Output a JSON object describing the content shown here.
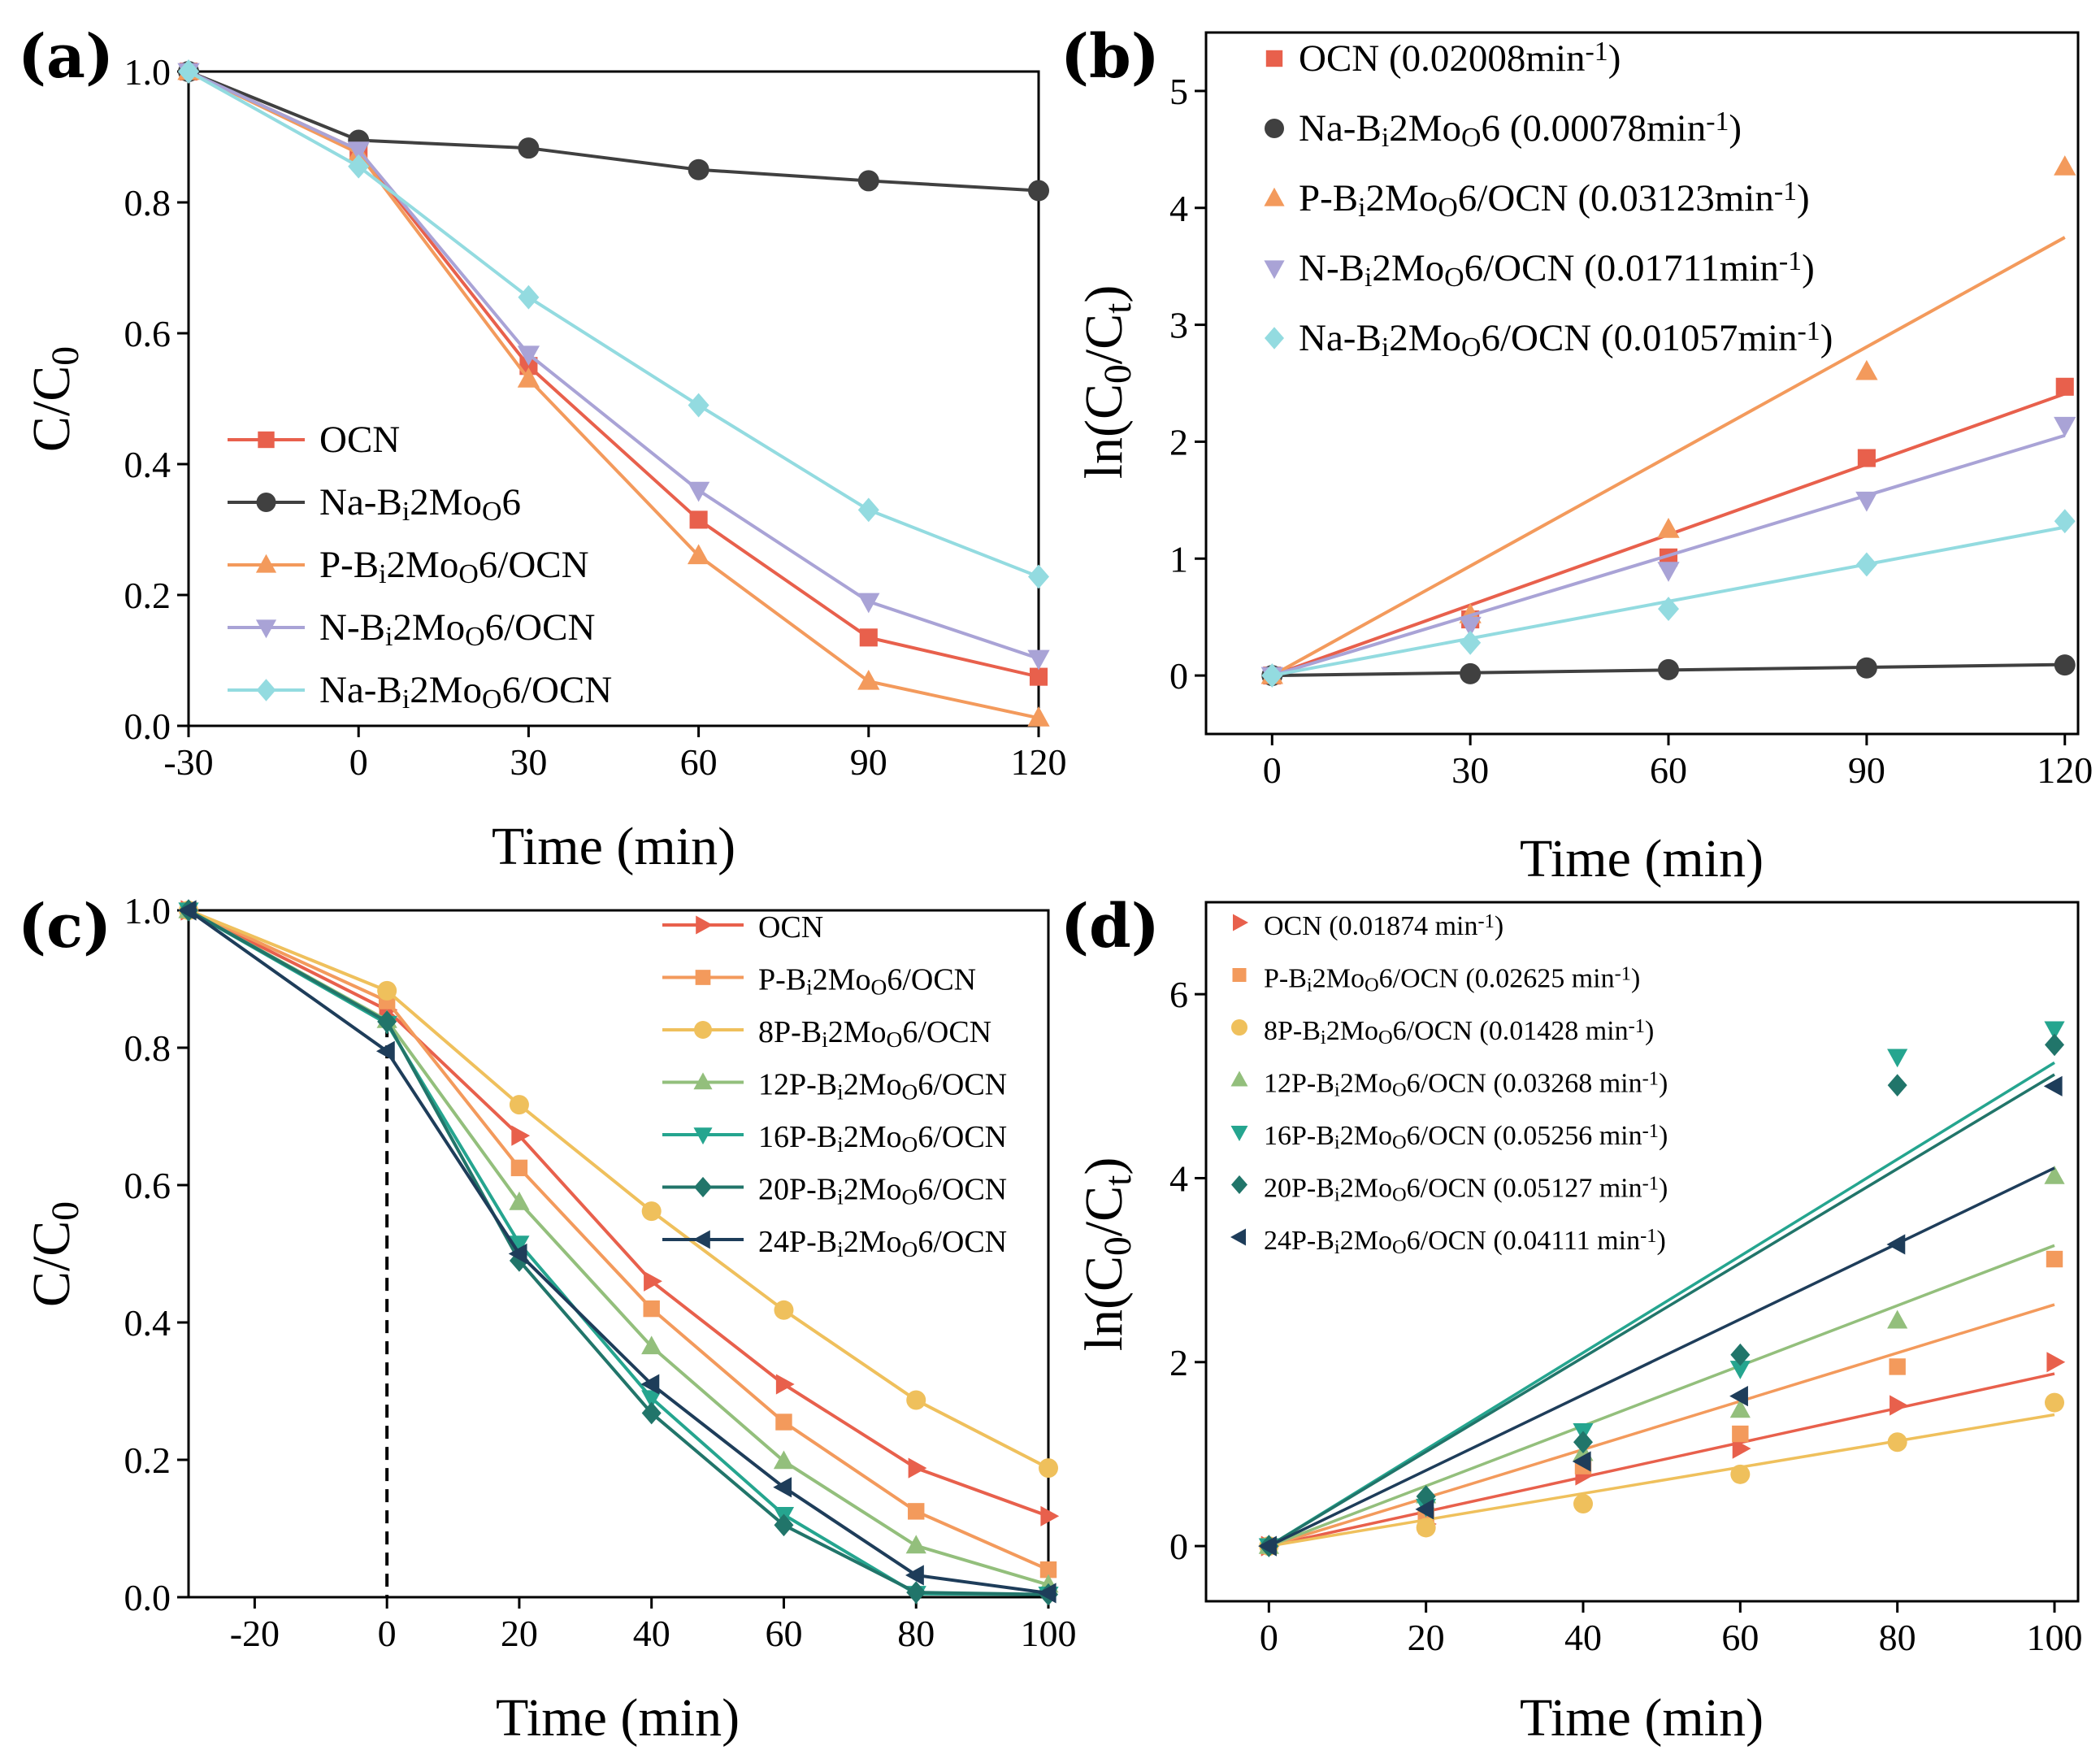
{
  "chart_data": [
    {
      "panel": "(a)",
      "type": "line",
      "xlabel": "Time (min)",
      "ylabel": "C/C0",
      "xlim": [
        -30,
        120
      ],
      "ylim": [
        0.0,
        1.0
      ],
      "xticks": [
        -30,
        0,
        30,
        60,
        90,
        120
      ],
      "yticks": [
        0.0,
        0.2,
        0.4,
        0.6,
        0.8,
        1.0
      ],
      "xtick_labels": [
        "-30",
        "0",
        "30",
        "60",
        "90",
        "120"
      ],
      "ytick_labels": [
        "0.0",
        "0.2",
        "0.4",
        "0.6",
        "0.8",
        "1.0"
      ],
      "legend_position": "lower-left",
      "x": [
        -30,
        0,
        30,
        60,
        90,
        120
      ],
      "series": [
        {
          "name": "OCN",
          "sub": [],
          "color": "#e8604c",
          "marker": "square",
          "values": [
            1.0,
            0.88,
            0.55,
            0.315,
            0.135,
            0.075
          ]
        },
        {
          "name": "Na-Bi2MoO6",
          "sub": [
            [
              4,
              5
            ],
            [
              8,
              9
            ]
          ],
          "color": "#404040",
          "marker": "circle",
          "values": [
            1.0,
            0.895,
            0.883,
            0.85,
            0.833,
            0.818
          ]
        },
        {
          "name": "P-Bi2MoO6/OCN",
          "sub": [
            [
              3,
              4
            ],
            [
              7,
              8
            ]
          ],
          "color": "#f39a5c",
          "marker": "triangle-up",
          "values": [
            1.0,
            0.875,
            0.53,
            0.26,
            0.068,
            0.012
          ]
        },
        {
          "name": "N-Bi2MoO6/OCN",
          "sub": [
            [
              3,
              4
            ],
            [
              7,
              8
            ]
          ],
          "color": "#a9a3d6",
          "marker": "triangle-down",
          "values": [
            1.0,
            0.88,
            0.568,
            0.36,
            0.19,
            0.103
          ]
        },
        {
          "name": "Na-Bi2MoO6/OCN",
          "sub": [
            [
              4,
              5
            ],
            [
              8,
              9
            ]
          ],
          "color": "#93dbe0",
          "marker": "diamond",
          "values": [
            1.0,
            0.855,
            0.655,
            0.49,
            0.33,
            0.228
          ]
        }
      ]
    },
    {
      "panel": "(b)",
      "type": "scatter",
      "xlabel": "Time (min)",
      "ylabel": "ln(C0/Ct)",
      "xlim": [
        -10,
        122
      ],
      "ylim": [
        -0.5,
        5.5
      ],
      "xticks": [
        0,
        30,
        60,
        90,
        120
      ],
      "yticks": [
        0,
        1,
        2,
        3,
        4,
        5
      ],
      "xtick_labels": [
        "0",
        "30",
        "60",
        "90",
        "120"
      ],
      "ytick_labels": [
        "0",
        "1",
        "2",
        "3",
        "4",
        "5"
      ],
      "legend_position": "top-left",
      "x": [
        0,
        30,
        60,
        90,
        120
      ],
      "series": [
        {
          "name": "OCN (0.02008min-1)",
          "sub": [],
          "sup": [
            [
              15,
              17
            ]
          ],
          "color": "#e8604c",
          "marker": "square",
          "values": [
            0,
            0.48,
            1.01,
            1.86,
            2.47
          ],
          "fit_slope": 0.02008
        },
        {
          "name": "Na-Bi2MoO6 (0.00078min-1)",
          "sub": [
            [
              4,
              5
            ],
            [
              8,
              9
            ]
          ],
          "sup": [
            [
              22,
              24
            ]
          ],
          "color": "#404040",
          "marker": "circle",
          "values": [
            0,
            0.015,
            0.05,
            0.065,
            0.09
          ],
          "fit_slope": 0.00078
        },
        {
          "name": "P-Bi2MoO6/OCN (0.03123min-1)",
          "sub": [
            [
              3,
              4
            ],
            [
              7,
              8
            ]
          ],
          "sup": [
            [
              25,
              27
            ]
          ],
          "color": "#f39a5c",
          "marker": "triangle-up",
          "values": [
            0,
            0.52,
            1.25,
            2.6,
            4.35
          ],
          "fit_slope": 0.03123
        },
        {
          "name": "N-Bi2MoO6/OCN (0.01711min-1)",
          "sub": [
            [
              3,
              4
            ],
            [
              7,
              8
            ]
          ],
          "sup": [
            [
              25,
              27
            ]
          ],
          "color": "#a9a3d6",
          "marker": "triangle-down",
          "values": [
            0,
            0.43,
            0.9,
            1.5,
            2.14
          ],
          "fit_slope": 0.01711
        },
        {
          "name": "Na-Bi2MoO6/OCN (0.01057min-1)",
          "sub": [
            [
              4,
              5
            ],
            [
              8,
              9
            ]
          ],
          "sup": [
            [
              26,
              28
            ]
          ],
          "color": "#93dbe0",
          "marker": "diamond",
          "values": [
            0,
            0.28,
            0.57,
            0.95,
            1.32
          ],
          "fit_slope": 0.01057
        }
      ]
    },
    {
      "panel": "(c)",
      "type": "line",
      "xlabel": "Time (min)",
      "ylabel": "C/C0",
      "xlim": [
        -30,
        100
      ],
      "ylim": [
        0.0,
        1.0
      ],
      "xticks": [
        -20,
        0,
        20,
        40,
        60,
        80,
        100
      ],
      "yticks": [
        0.0,
        0.2,
        0.4,
        0.6,
        0.8,
        1.0
      ],
      "xtick_labels": [
        "-20",
        "0",
        "20",
        "40",
        "60",
        "80",
        "100"
      ],
      "ytick_labels": [
        "0.0",
        "0.2",
        "0.4",
        "0.6",
        "0.8",
        "1.0"
      ],
      "legend_position": "top-right",
      "vline_x": 0,
      "x": [
        -30,
        0,
        20,
        40,
        60,
        80,
        100
      ],
      "series": [
        {
          "name": "OCN",
          "sub": [],
          "color": "#e8604c",
          "marker": "triangle-right",
          "values": [
            1.0,
            0.855,
            0.672,
            0.46,
            0.31,
            0.188,
            0.118
          ]
        },
        {
          "name": "P-Bi2MoO6/OCN",
          "sub": [
            [
              3,
              4
            ],
            [
              7,
              8
            ]
          ],
          "color": "#f39a5c",
          "marker": "square",
          "values": [
            1.0,
            0.868,
            0.625,
            0.42,
            0.255,
            0.125,
            0.04
          ]
        },
        {
          "name": "8P-Bi2MoO6/OCN",
          "sub": [
            [
              4,
              5
            ],
            [
              8,
              9
            ]
          ],
          "color": "#efc05c",
          "marker": "circle",
          "values": [
            1.0,
            0.883,
            0.717,
            0.562,
            0.418,
            0.287,
            0.188
          ]
        },
        {
          "name": "12P-Bi2MoO6/OCN",
          "sub": [
            [
              5,
              6
            ],
            [
              9,
              10
            ]
          ],
          "color": "#93bf7c",
          "marker": "triangle-up",
          "values": [
            1.0,
            0.84,
            0.575,
            0.365,
            0.198,
            0.075,
            0.018
          ]
        },
        {
          "name": "16P-Bi2MoO6/OCN",
          "sub": [
            [
              5,
              6
            ],
            [
              9,
              10
            ]
          ],
          "color": "#25a58f",
          "marker": "triangle-down",
          "values": [
            1.0,
            0.835,
            0.515,
            0.29,
            0.12,
            0.005,
            0.004
          ]
        },
        {
          "name": "20P-Bi2MoO6/OCN",
          "sub": [
            [
              5,
              6
            ],
            [
              9,
              10
            ]
          ],
          "color": "#21756a",
          "marker": "diamond",
          "values": [
            1.0,
            0.838,
            0.49,
            0.268,
            0.105,
            0.007,
            0.004
          ]
        },
        {
          "name": "24P-Bi2MoO6/OCN",
          "sub": [
            [
              5,
              6
            ],
            [
              9,
              10
            ]
          ],
          "color": "#1e3d5a",
          "marker": "triangle-left",
          "values": [
            1.0,
            0.795,
            0.5,
            0.31,
            0.16,
            0.032,
            0.006
          ]
        }
      ]
    },
    {
      "panel": "(d)",
      "type": "scatter",
      "xlabel": "Time (min)",
      "ylabel": "ln(C0/Ct)",
      "xlim": [
        -8,
        103
      ],
      "ylim": [
        -0.6,
        7.0
      ],
      "xticks": [
        0,
        20,
        40,
        60,
        80,
        100
      ],
      "yticks": [
        0,
        2,
        4,
        6
      ],
      "xtick_labels": [
        "0",
        "20",
        "40",
        "60",
        "80",
        "100"
      ],
      "ytick_labels": [
        "0",
        "2",
        "4",
        "6"
      ],
      "legend_position": "top-left",
      "x": [
        0,
        20,
        40,
        60,
        80,
        100
      ],
      "series": [
        {
          "name": "OCN (0.01874 min-1)",
          "sub": [],
          "sup": [
            [
              16,
              18
            ]
          ],
          "color": "#e8604c",
          "marker": "triangle-right",
          "values": [
            0,
            0.24,
            0.77,
            1.06,
            1.53,
            2.0
          ],
          "fit_slope": 0.01874
        },
        {
          "name": "P-Bi2MoO6/OCN (0.02625 min-1)",
          "sub": [
            [
              3,
              4
            ],
            [
              7,
              8
            ]
          ],
          "sup": [
            [
              26,
              28
            ]
          ],
          "color": "#f39a5c",
          "marker": "square",
          "values": [
            0,
            0.33,
            0.87,
            1.22,
            1.95,
            3.12
          ],
          "fit_slope": 0.02625
        },
        {
          "name": "8P-Bi2MoO6/OCN (0.01428 min-1)",
          "sub": [
            [
              4,
              5
            ],
            [
              8,
              9
            ]
          ],
          "sup": [
            [
              27,
              29
            ]
          ],
          "color": "#efc05c",
          "marker": "circle",
          "values": [
            0,
            0.2,
            0.46,
            0.78,
            1.13,
            1.56
          ],
          "fit_slope": 0.01428
        },
        {
          "name": "12P-Bi2MoO6/OCN (0.03268 min-1)",
          "sub": [
            [
              5,
              6
            ],
            [
              9,
              10
            ]
          ],
          "sup": [
            [
              28,
              30
            ]
          ],
          "color": "#93bf7c",
          "marker": "triangle-up",
          "values": [
            0,
            0.55,
            1.01,
            1.48,
            2.45,
            4.02
          ],
          "fit_slope": 0.03268
        },
        {
          "name": "16P-Bi2MoO6/OCN (0.05256 min-1)",
          "sub": [
            [
              5,
              6
            ],
            [
              9,
              10
            ]
          ],
          "sup": [
            [
              28,
              30
            ]
          ],
          "color": "#25a58f",
          "marker": "triangle-down",
          "values": [
            0,
            0.43,
            1.25,
            1.93,
            5.32,
            5.62
          ],
          "fit_slope": 0.05256
        },
        {
          "name": "20P-Bi2MoO6/OCN (0.05127 min-1)",
          "sub": [
            [
              5,
              6
            ],
            [
              9,
              10
            ]
          ],
          "sup": [
            [
              28,
              30
            ]
          ],
          "color": "#21756a",
          "marker": "diamond",
          "values": [
            0,
            0.54,
            1.13,
            2.08,
            5.01,
            5.45
          ],
          "fit_slope": 0.05127
        },
        {
          "name": "24P-Bi2MoO6/OCN (0.04111 min-1)",
          "sub": [
            [
              5,
              6
            ],
            [
              9,
              10
            ]
          ],
          "sup": [
            [
              28,
              30
            ]
          ],
          "color": "#1e3d5a",
          "marker": "triangle-left",
          "values": [
            0,
            0.4,
            0.92,
            1.63,
            3.28,
            5.0
          ],
          "fit_slope": 0.04111
        }
      ]
    }
  ]
}
